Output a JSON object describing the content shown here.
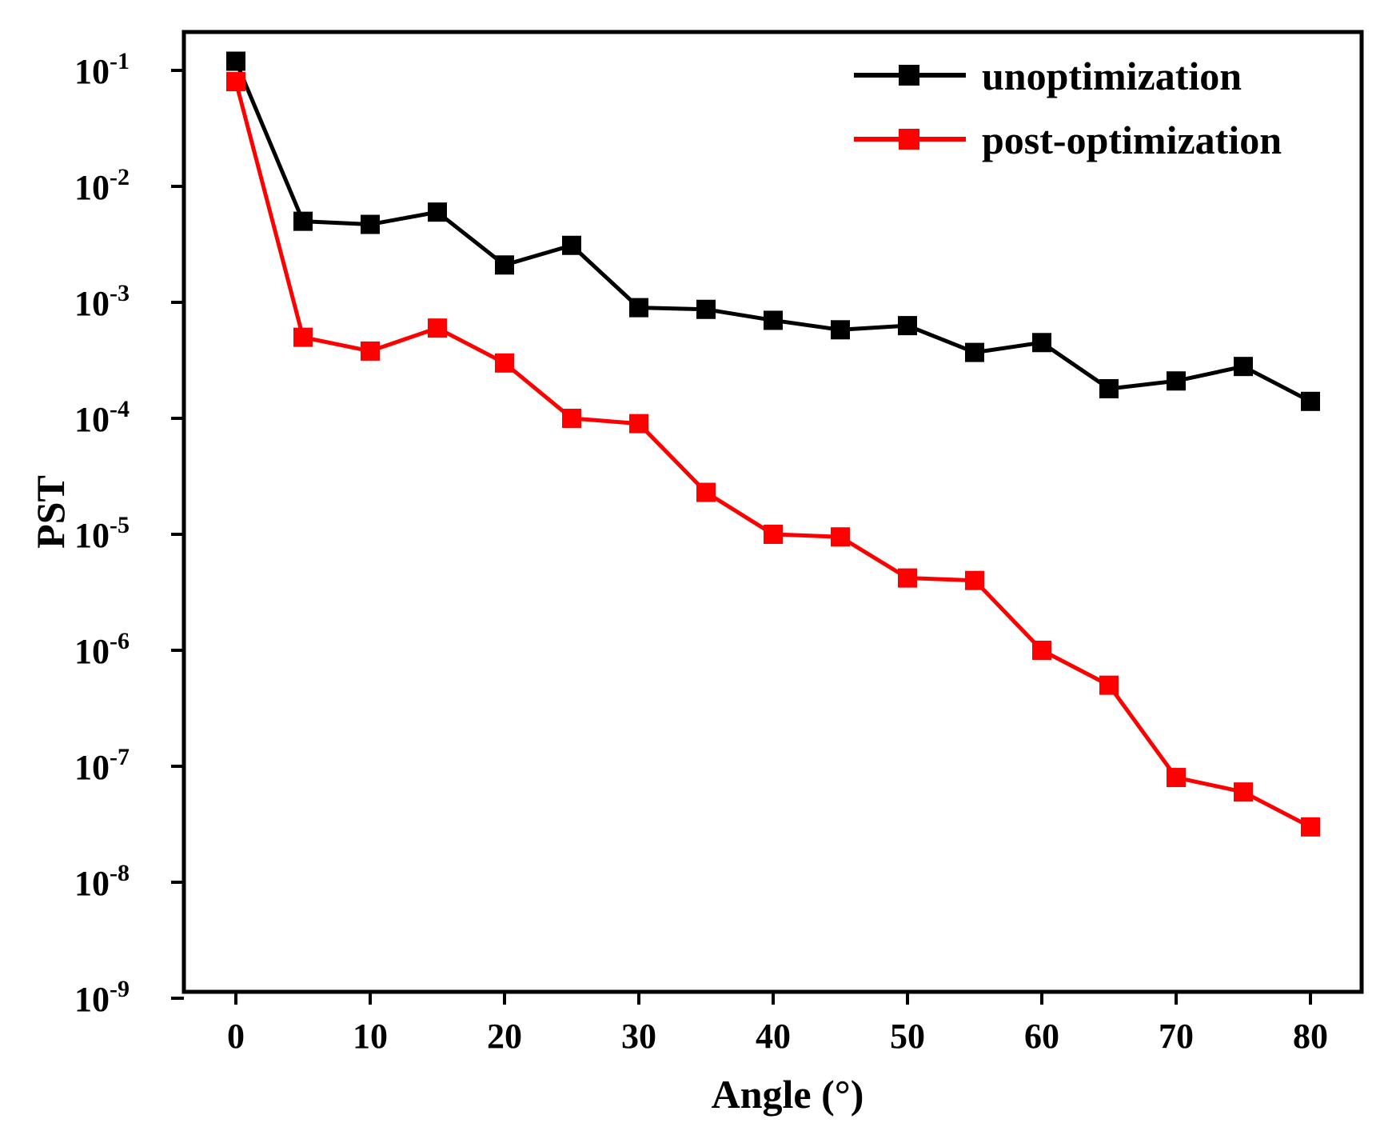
{
  "chart_data": {
    "type": "line",
    "title": "",
    "xlabel": "Angle (°)",
    "ylabel": "PST",
    "xscale": "linear",
    "yscale": "log",
    "xlim": [
      -4,
      84
    ],
    "ylim": [
      1e-09,
      0.5
    ],
    "x_ticks": [
      0,
      10,
      20,
      30,
      40,
      50,
      60,
      70,
      80
    ],
    "y_ticks": [
      {
        "value": 0.1,
        "base": "10",
        "exp": "-1"
      },
      {
        "value": 0.01,
        "base": "10",
        "exp": "-2"
      },
      {
        "value": 0.001,
        "base": "10",
        "exp": "-3"
      },
      {
        "value": 0.0001,
        "base": "10",
        "exp": "-4"
      },
      {
        "value": 1e-05,
        "base": "10",
        "exp": "-5"
      },
      {
        "value": 1e-06,
        "base": "10",
        "exp": "-6"
      },
      {
        "value": 1e-07,
        "base": "10",
        "exp": "-7"
      },
      {
        "value": 1e-08,
        "base": "10",
        "exp": "-8"
      },
      {
        "value": 1e-09,
        "base": "10",
        "exp": "-9"
      }
    ],
    "grid": false,
    "legend_position": "top-right",
    "x": [
      0,
      5,
      10,
      15,
      20,
      25,
      30,
      35,
      40,
      45,
      50,
      55,
      60,
      65,
      70,
      75,
      80
    ],
    "series": [
      {
        "name": "unoptimization",
        "color": "#000000",
        "marker": "square",
        "values": [
          0.12,
          0.005,
          0.0047,
          0.006,
          0.0021,
          0.0031,
          0.0009,
          0.00087,
          0.0007,
          0.00058,
          0.00063,
          0.00037,
          0.00045,
          0.00018,
          0.00021,
          0.00028,
          0.00014
        ]
      },
      {
        "name": "post-optimization",
        "color": "#ff0000",
        "marker": "square",
        "values": [
          0.08,
          0.0005,
          0.00038,
          0.0006,
          0.0003,
          0.0001,
          9e-05,
          2.3e-05,
          1e-05,
          9.5e-06,
          4.2e-06,
          4e-06,
          1e-06,
          5e-07,
          8e-08,
          6e-08,
          3e-08
        ]
      }
    ]
  }
}
